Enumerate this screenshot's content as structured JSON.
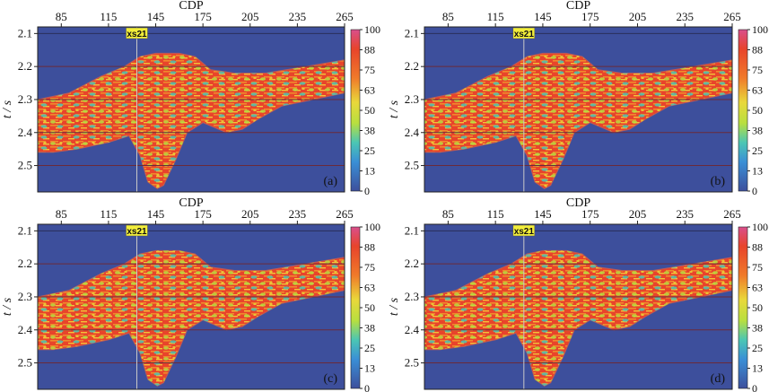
{
  "figure": {
    "xlabel": "CDP",
    "ylabel": "t / s",
    "x_ticks": [
      "85",
      "115",
      "145",
      "175",
      "205",
      "235",
      "265"
    ],
    "y_ticks": [
      "2.1",
      "2.2",
      "2.3",
      "2.4",
      "2.5"
    ],
    "colorbar_ticks": [
      "100",
      "88",
      "75",
      "63",
      "50",
      "38",
      "25",
      "13",
      "0"
    ],
    "marker_label": "xs21",
    "colors": {
      "background": "#3d4f9c",
      "body": "#e8442b",
      "horizon": "#6b2a3a"
    }
  },
  "panels": [
    {
      "label": "(a)"
    },
    {
      "label": "(b)"
    },
    {
      "label": "(c)"
    },
    {
      "label": "(d)"
    }
  ],
  "chart_data": [
    {
      "type": "heatmap",
      "xlabel": "CDP",
      "ylabel": "t / s",
      "xlim": [
        70,
        265
      ],
      "ylim": [
        2.08,
        2.58
      ],
      "colorbar_range": [
        0,
        100
      ],
      "marker_cdp": 133,
      "panel_label": "(a)"
    },
    {
      "type": "heatmap",
      "xlabel": "CDP",
      "ylabel": "t / s",
      "xlim": [
        70,
        265
      ],
      "ylim": [
        2.08,
        2.58
      ],
      "colorbar_range": [
        0,
        100
      ],
      "marker_cdp": 133,
      "panel_label": "(b)"
    },
    {
      "type": "heatmap",
      "xlabel": "CDP",
      "ylabel": "t / s",
      "xlim": [
        70,
        265
      ],
      "ylim": [
        2.08,
        2.58
      ],
      "colorbar_range": [
        0,
        100
      ],
      "marker_cdp": 133,
      "panel_label": "(c)"
    },
    {
      "type": "heatmap",
      "xlabel": "CDP",
      "ylabel": "t / s",
      "xlim": [
        70,
        265
      ],
      "ylim": [
        2.08,
        2.58
      ],
      "colorbar_range": [
        0,
        100
      ],
      "marker_cdp": 133,
      "panel_label": "(d)"
    }
  ]
}
